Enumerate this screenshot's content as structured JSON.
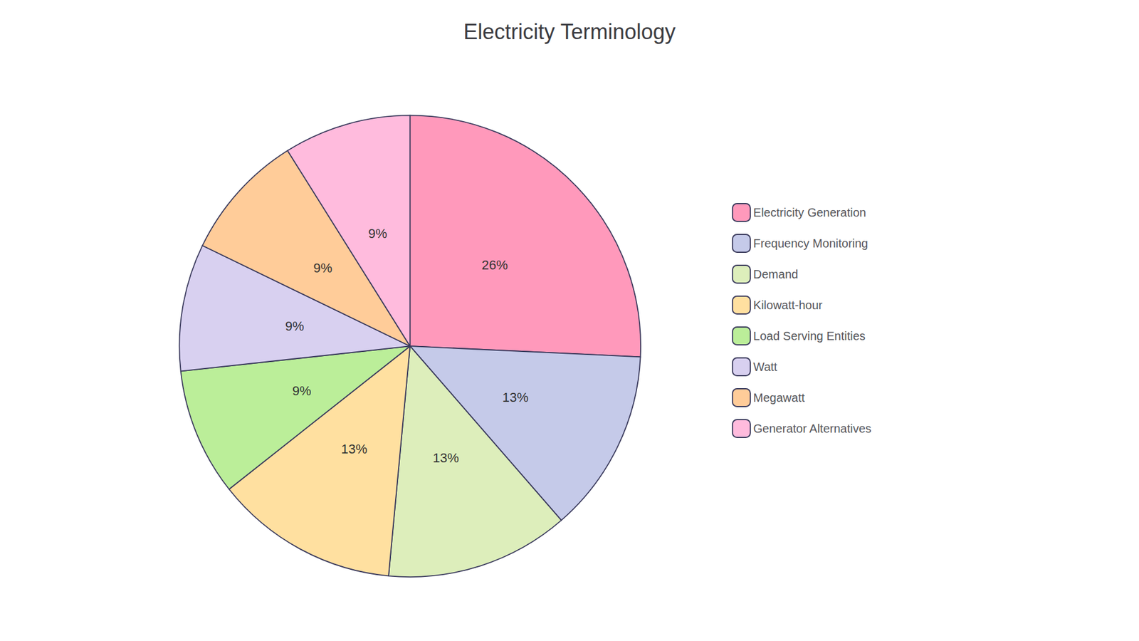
{
  "chart_data": {
    "type": "pie",
    "title": "Electricity Terminology",
    "categories": [
      "Electricity Generation",
      "Frequency Monitoring",
      "Demand",
      "Kilowatt-hour",
      "Load Serving Entities",
      "Watt",
      "Megawatt",
      "Generator Alternatives"
    ],
    "values": [
      26,
      13,
      13,
      13,
      9,
      9,
      9,
      9
    ],
    "value_labels": [
      "26%",
      "13%",
      "13%",
      "13%",
      "9%",
      "9%",
      "9%",
      "9%"
    ],
    "colors": [
      "#FF99BB",
      "#C5CAE9",
      "#DDEEBB",
      "#FFE0A0",
      "#BBEE99",
      "#D8D0F0",
      "#FFCC99",
      "#FFBBDD"
    ],
    "data_labels": true,
    "legend": "right"
  }
}
